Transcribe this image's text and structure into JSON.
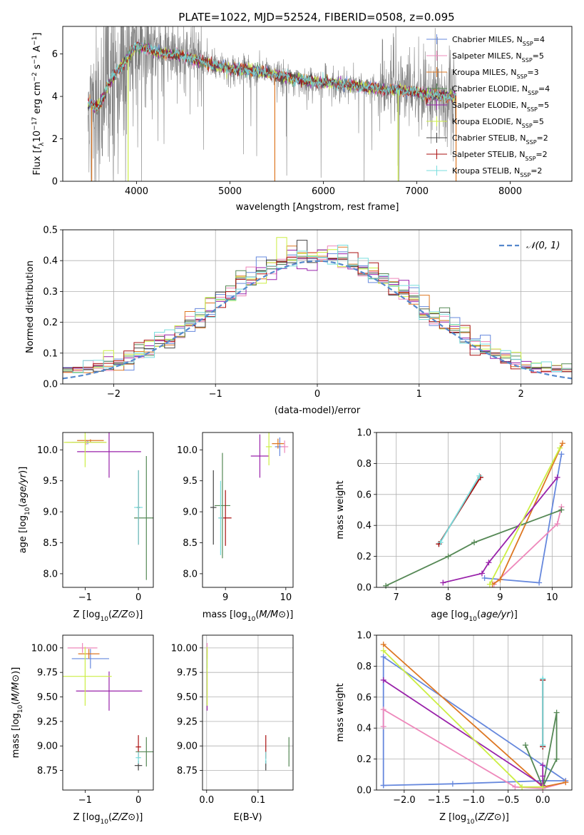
{
  "figure": {
    "title": "PLATE=1022, MJD=52524, FIBERID=0508, z=0.095"
  },
  "series_names": [
    "Chabrier MILES, N$_{SSP}$=4",
    "Salpeter MILES, N$_{SSP}$=5",
    "Kroupa MILES, N$_{SSP}$=3",
    "Chabrier ELODIE, N$_{SSP}$=4",
    "Salpeter ELODIE, N$_{SSP}$=5",
    "Kroupa ELODIE, N$_{SSP}$=5",
    "Chabrier STELIB, N$_{SSP}$=2",
    "Salpeter STELIB, N$_{SSP}$=2",
    "Kroupa STELIB, N$_{SSP}$=2"
  ],
  "series_colors": [
    "#6688dd",
    "#ee88bb",
    "#dd7722",
    "#558855",
    "#9922aa",
    "#ccee44",
    "#444444",
    "#aa1111",
    "#77dddd"
  ],
  "legend": {
    "labels": [
      "Chabrier MILES, N",
      "Salpeter MILES, N",
      "Kroupa MILES, N",
      "Chabrier ELODIE, N",
      "Salpeter ELODIE, N",
      "Kroupa ELODIE, N",
      "Chabrier STELIB, N",
      "Salpeter STELIB, N",
      "Kroupa STELIB, N"
    ],
    "subscript": "SSP",
    "counts": [
      "=4",
      "=5",
      "=3",
      "=4",
      "=5",
      "=5",
      "=2",
      "=2",
      "=2"
    ]
  },
  "chart_data": [
    {
      "id": "spectrum",
      "type": "line",
      "title": "PLATE=1022, MJD=52524, FIBERID=0508, z=0.095",
      "xlabel": "wavelength [Angstrom, rest frame]",
      "ylabel_parts": [
        "Flux [",
        "f",
        "λ",
        "10",
        "−17",
        " erg cm",
        "−2",
        " s",
        "−1",
        " A",
        "−1",
        "]"
      ],
      "xlim": [
        3210,
        8660
      ],
      "ylim": [
        0,
        7.3
      ],
      "xticks": [
        4000,
        5000,
        6000,
        7000,
        8000
      ],
      "xtick_labels": [
        "4000",
        "5000",
        "6000",
        "7000",
        "8000"
      ],
      "yticks": [
        0,
        2,
        4,
        6
      ],
      "ytick_labels": [
        "0",
        "2",
        "4",
        "6"
      ],
      "grid": false,
      "legend_position": "upper-right",
      "data_range": [
        3480,
        7420
      ],
      "continuum_points": [
        [
          3480,
          3.6
        ],
        [
          3600,
          3.5
        ],
        [
          3700,
          4.6
        ],
        [
          3850,
          5.5
        ],
        [
          4000,
          6.4
        ],
        [
          4200,
          6.1
        ],
        [
          4500,
          5.9
        ],
        [
          4800,
          5.5
        ],
        [
          5000,
          5.3
        ],
        [
          5300,
          5.2
        ],
        [
          5600,
          4.9
        ],
        [
          5900,
          4.7
        ],
        [
          6200,
          4.6
        ],
        [
          6500,
          4.4
        ],
        [
          6800,
          4.3
        ],
        [
          7100,
          4.1
        ],
        [
          7420,
          4.0
        ]
      ],
      "flux_range": "0–7.3 (noisy data, gray)"
    },
    {
      "id": "residuals",
      "type": "histogram",
      "xlabel": "(data-model)/error",
      "ylabel": "Normed distribution",
      "xlim": [
        -2.5,
        2.5
      ],
      "ylim": [
        0,
        0.5
      ],
      "xticks": [
        -2,
        -1,
        0,
        1,
        2
      ],
      "xtick_labels": [
        "−2",
        "−1",
        "0",
        "1",
        "2"
      ],
      "yticks": [
        0,
        0.1,
        0.2,
        0.3,
        0.4,
        0.5
      ],
      "ytick_labels": [
        "0.0",
        "0.1",
        "0.2",
        "0.3",
        "0.4",
        "0.5"
      ],
      "grid": true,
      "legend_position": "upper-right",
      "legend_label": "𝒩(0, 1)",
      "bin_width": 0.1,
      "series_count": 9,
      "reference_curve": "normal(0,1) pdf"
    },
    {
      "id": "age_vs_Z",
      "type": "errorbar",
      "xlabel": "Z [log10(Z/Z⊙)]",
      "ylabel": "age  [log10(age/yr)]",
      "xlim": [
        -1.42,
        0.28
      ],
      "ylim": [
        7.78,
        10.28
      ],
      "xticks": [
        -1,
        0
      ],
      "xtick_labels": [
        "−1",
        "0"
      ],
      "yticks": [
        8.0,
        8.5,
        9.0,
        9.5,
        10.0
      ],
      "ytick_labels": [
        "8.0",
        "8.5",
        "9.0",
        "9.5",
        "10.0"
      ],
      "points": [
        {
          "series": 0,
          "x": -0.95,
          "y": 10.12,
          "xerr": 0.3,
          "yerr": 0.03
        },
        {
          "series": 1,
          "x": -0.98,
          "y": 10.12,
          "xerr": 0.38,
          "yerr": 0.04
        },
        {
          "series": 2,
          "x": -0.9,
          "y": 10.15,
          "xerr": 0.25,
          "yerr": 0.02
        },
        {
          "series": 3,
          "x": 0.15,
          "y": 8.9,
          "xerr": 0.23,
          "yerr": 1.0
        },
        {
          "series": 4,
          "x": -0.55,
          "y": 9.97,
          "xerr": 0.6,
          "yerr": 0.42
        },
        {
          "series": 5,
          "x": -1.0,
          "y": 10.12,
          "xerr": 0.4,
          "yerr": 0.4
        },
        {
          "series": 6,
          "x": 0.0,
          "y": 9.07,
          "xerr": 0.03,
          "yerr": 0.6
        },
        {
          "series": 7,
          "x": 0.0,
          "y": 9.07,
          "xerr": 0.03,
          "yerr": 0.6
        },
        {
          "series": 8,
          "x": 0.0,
          "y": 9.07,
          "xerr": 0.08,
          "yerr": 0.6
        }
      ]
    },
    {
      "id": "age_vs_mass",
      "type": "errorbar",
      "xlabel": "mass [log10(M/M⊙)]",
      "ylabel": "",
      "xlim": [
        8.62,
        10.12
      ],
      "ylim": [
        7.78,
        10.28
      ],
      "xticks": [
        9,
        10
      ],
      "xtick_labels": [
        "9",
        "10"
      ],
      "yticks": [
        8.0,
        8.5,
        9.0,
        9.5,
        10.0
      ],
      "ytick_labels": [
        "8.0",
        "8.5",
        "9.0",
        "9.5",
        "10.0"
      ],
      "points": [
        {
          "series": 0,
          "x": 9.9,
          "y": 10.05,
          "xerr": 0.08,
          "yerr": 0.15
        },
        {
          "series": 1,
          "x": 9.98,
          "y": 10.05,
          "xerr": 0.06,
          "yerr": 0.1
        },
        {
          "series": 2,
          "x": 9.87,
          "y": 10.1,
          "xerr": 0.1,
          "yerr": 0.08
        },
        {
          "series": 3,
          "x": 8.95,
          "y": 9.1,
          "xerr": 0.13,
          "yerr": 0.85
        },
        {
          "series": 4,
          "x": 9.57,
          "y": 9.9,
          "xerr": 0.15,
          "yerr": 0.35
        },
        {
          "series": 5,
          "x": 9.72,
          "y": 10.05,
          "xerr": 0.05,
          "yerr": 0.3
        },
        {
          "series": 6,
          "x": 8.8,
          "y": 9.07,
          "xerr": 0.05,
          "yerr": 0.6
        },
        {
          "series": 7,
          "x": 9.0,
          "y": 8.9,
          "xerr": 0.1,
          "yerr": 0.45
        },
        {
          "series": 8,
          "x": 8.92,
          "y": 8.9,
          "xerr": 0.04,
          "yerr": 0.6
        }
      ]
    },
    {
      "id": "weight_vs_age",
      "type": "line",
      "xlabel": "age  [log10(age/yr)]",
      "ylabel": "mass weight",
      "xlim": [
        6.62,
        10.38
      ],
      "ylim": [
        0,
        1.0
      ],
      "xticks": [
        7,
        8,
        9,
        10
      ],
      "xtick_labels": [
        "7",
        "8",
        "9",
        "10"
      ],
      "yticks": [
        0,
        0.2,
        0.4,
        0.6,
        0.8,
        1.0
      ],
      "ytick_labels": [
        "0.0",
        "0.2",
        "0.4",
        "0.6",
        "0.8",
        "1.0"
      ],
      "grid": true,
      "series": [
        {
          "series": 0,
          "x": [
            8.7,
            9.75,
            10.18
          ],
          "y": [
            0.06,
            0.03,
            0.86
          ]
        },
        {
          "series": 1,
          "x": [
            8.88,
            10.1,
            10.18
          ],
          "y": [
            0.02,
            0.41,
            0.52
          ]
        },
        {
          "series": 2,
          "x": [
            8.85,
            9.0,
            10.2
          ],
          "y": [
            0.02,
            0.05,
            0.93
          ]
        },
        {
          "series": 3,
          "x": [
            6.8,
            8.0,
            8.5,
            10.18
          ],
          "y": [
            0.01,
            0.2,
            0.29,
            0.5
          ]
        },
        {
          "series": 4,
          "x": [
            7.9,
            8.65,
            8.78,
            10.1
          ],
          "y": [
            0.03,
            0.09,
            0.16,
            0.71
          ]
        },
        {
          "series": 5,
          "x": [
            8.8,
            10.15
          ],
          "y": [
            0.02,
            0.9
          ]
        },
        {
          "series": 6,
          "x": [
            7.82,
            8.62
          ],
          "y": [
            0.28,
            0.71
          ]
        },
        {
          "series": 7,
          "x": [
            7.82,
            8.62
          ],
          "y": [
            0.28,
            0.71
          ]
        },
        {
          "series": 8,
          "x": [
            7.85,
            8.6
          ],
          "y": [
            0.29,
            0.72
          ]
        }
      ]
    },
    {
      "id": "mass_vs_Z",
      "type": "errorbar",
      "xlabel": "Z [log10(Z/Z⊙)]",
      "ylabel": "mass [log10(M/M⊙)]",
      "xlim": [
        -1.42,
        0.28
      ],
      "ylim": [
        8.55,
        10.13
      ],
      "xticks": [
        -1,
        0
      ],
      "xtick_labels": [
        "−1",
        "0"
      ],
      "yticks": [
        8.75,
        9.0,
        9.25,
        9.5,
        9.75,
        10.0
      ],
      "ytick_labels": [
        "8.75",
        "9.00",
        "9.25",
        "9.50",
        "9.75",
        "10.00"
      ],
      "points": [
        {
          "series": 0,
          "x": -0.9,
          "y": 9.89,
          "xerr": 0.35,
          "yerr": 0.1
        },
        {
          "series": 1,
          "x": -1.05,
          "y": 10.0,
          "xerr": 0.28,
          "yerr": 0.05
        },
        {
          "series": 2,
          "x": -0.93,
          "y": 9.94,
          "xerr": 0.2,
          "yerr": 0.05
        },
        {
          "series": 3,
          "x": 0.15,
          "y": 8.94,
          "xerr": 0.2,
          "yerr": 0.15
        },
        {
          "series": 4,
          "x": -0.55,
          "y": 9.56,
          "xerr": 0.62,
          "yerr": 0.2
        },
        {
          "series": 5,
          "x": -1.0,
          "y": 9.71,
          "xerr": 0.5,
          "yerr": 0.3
        },
        {
          "series": 6,
          "x": 0.0,
          "y": 8.8,
          "xerr": 0.07,
          "yerr": 0.05
        },
        {
          "series": 7,
          "x": 0.0,
          "y": 8.99,
          "xerr": 0.05,
          "yerr": 0.12
        },
        {
          "series": 8,
          "x": 0.0,
          "y": 8.88,
          "xerr": 0.05,
          "yerr": 0.06
        }
      ]
    },
    {
      "id": "mass_vs_EBV",
      "type": "errorbar",
      "xlabel": "E(B-V)",
      "ylabel": "",
      "xlim": [
        -0.008,
        0.168
      ],
      "ylim": [
        8.55,
        10.13
      ],
      "xticks": [
        0.0,
        0.1
      ],
      "xtick_labels": [
        "0.0",
        "0.1"
      ],
      "yticks": [
        8.75,
        9.0,
        9.25,
        9.5,
        9.75,
        10.0
      ],
      "ytick_labels": [
        "8.75",
        "9.00",
        "9.25",
        "9.50",
        "9.75",
        "10.00"
      ],
      "grid": true,
      "points": [
        {
          "series": 0,
          "x": 0.001,
          "y": 9.89,
          "xerr": 0.0005,
          "yerr": 0.1
        },
        {
          "series": 1,
          "x": 0.001,
          "y": 10.0,
          "xerr": 0.0005,
          "yerr": 0.05
        },
        {
          "series": 2,
          "x": 0.001,
          "y": 9.94,
          "xerr": 0.0005,
          "yerr": 0.05
        },
        {
          "series": 3,
          "x": 0.16,
          "y": 8.94,
          "xerr": 0.0005,
          "yerr": 0.15
        },
        {
          "series": 4,
          "x": 0.001,
          "y": 9.56,
          "xerr": 0.0005,
          "yerr": 0.2
        },
        {
          "series": 5,
          "x": 0.001,
          "y": 9.71,
          "xerr": 0.0005,
          "yerr": 0.3
        },
        {
          "series": 6,
          "x": 0.115,
          "y": 8.8,
          "xerr": 0.0005,
          "yerr": 0.05
        },
        {
          "series": 7,
          "x": 0.115,
          "y": 8.99,
          "xerr": 0.0005,
          "yerr": 0.12
        },
        {
          "series": 8,
          "x": 0.115,
          "y": 8.88,
          "xerr": 0.0005,
          "yerr": 0.06
        }
      ]
    },
    {
      "id": "weight_vs_Z",
      "type": "line",
      "xlabel": "Z [log10(Z/Z⊙)]",
      "ylabel": "mass weight",
      "xlim": [
        -2.4,
        0.42
      ],
      "ylim": [
        0,
        1.0
      ],
      "xticks": [
        -2.0,
        -1.5,
        -1.0,
        -0.5,
        0.0
      ],
      "xtick_labels": [
        "−2.0",
        "−1.5",
        "−1.0",
        "−0.5",
        "0.0"
      ],
      "yticks": [
        0,
        0.2,
        0.4,
        0.6,
        0.8,
        1.0
      ],
      "ytick_labels": [
        "0.0",
        "0.2",
        "0.4",
        "0.6",
        "0.8",
        "1.0"
      ],
      "grid": true,
      "series": [
        {
          "series": 0,
          "x": [
            -2.3,
            -1.3,
            0.0,
            0.33,
            -2.3,
            -2.3
          ],
          "y": [
            0.03,
            0.04,
            0.06,
            0.06,
            0.86,
            0.03
          ]
        },
        {
          "series": 1,
          "x": [
            -2.3,
            -2.3,
            -0.4,
            0.0,
            0.33
          ],
          "y": [
            0.41,
            0.52,
            0.02,
            0.01,
            0.05
          ]
        },
        {
          "series": 2,
          "x": [
            -2.3,
            0.0,
            0.33
          ],
          "y": [
            0.94,
            0.02,
            0.05
          ]
        },
        {
          "series": 3,
          "x": [
            -0.25,
            0.0,
            0.2,
            0.2,
            0.0
          ],
          "y": [
            0.29,
            0.02,
            0.2,
            0.5,
            0.02
          ]
        },
        {
          "series": 4,
          "x": [
            -2.3,
            0.0,
            0.0,
            0.0
          ],
          "y": [
            0.71,
            0.03,
            0.09,
            0.16
          ]
        },
        {
          "series": 5,
          "x": [
            -2.3,
            -0.3,
            0.0
          ],
          "y": [
            0.9,
            0.02,
            0.02
          ]
        },
        {
          "series": 6,
          "x": [
            0.0,
            0.0
          ],
          "y": [
            0.28,
            0.71
          ]
        },
        {
          "series": 7,
          "x": [
            0.0,
            0.0
          ],
          "y": [
            0.28,
            0.71
          ]
        },
        {
          "series": 8,
          "x": [
            0.0,
            0.0
          ],
          "y": [
            0.29,
            0.72
          ]
        }
      ]
    }
  ]
}
